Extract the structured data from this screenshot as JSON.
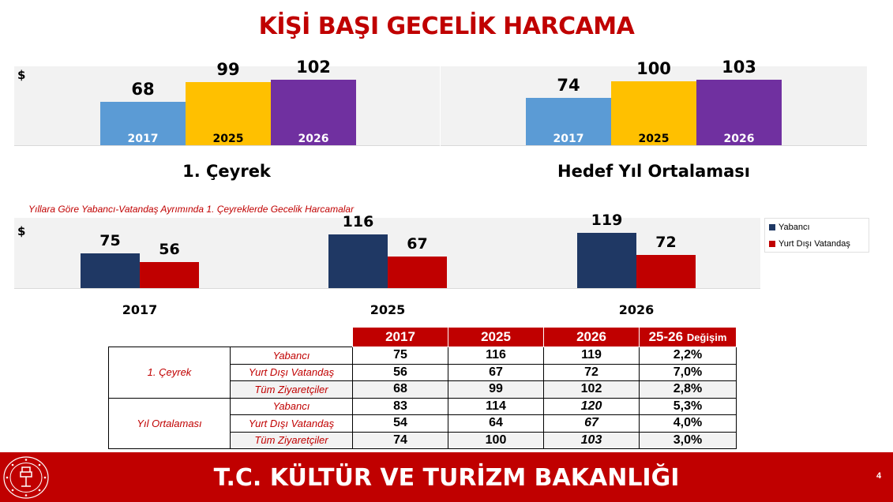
{
  "title": "KİŞİ BAŞI GECELİK HARCAMA",
  "currency": "$",
  "colors": {
    "c2017": "#5b9bd5",
    "c2025": "#ffc000",
    "c2026": "#7030a0",
    "foreign": "#1f3864",
    "citizen": "#c00000",
    "accent": "#c00000"
  },
  "chart_data": [
    {
      "type": "bar",
      "title": "1. Çeyrek",
      "ylabel": "$",
      "categories": [
        "2017",
        "2025",
        "2026"
      ],
      "values": [
        68,
        99,
        102
      ]
    },
    {
      "type": "bar",
      "title": "Hedef Yıl Ortalaması",
      "ylabel": "$",
      "categories": [
        "2017",
        "2025",
        "2026"
      ],
      "values": [
        74,
        100,
        103
      ]
    },
    {
      "type": "bar",
      "title": "Yıllara Göre Yabancı-Vatandaş Ayrımında 1. Çeyreklerde Gecelik Harcamalar",
      "ylabel": "$",
      "categories": [
        "2017",
        "2025",
        "2026"
      ],
      "legend": "right",
      "series": [
        {
          "name": "Yabancı",
          "values": [
            75,
            116,
            119
          ]
        },
        {
          "name": "Yurt Dışı Vatandaş",
          "values": [
            56,
            67,
            72
          ]
        }
      ]
    }
  ],
  "table": {
    "headers": [
      "2017",
      "2025",
      "2026",
      "25-26"
    ],
    "header_suffix": "Değişim",
    "groups": [
      {
        "label": "1. Çeyrek",
        "rows": [
          {
            "label": "Yabancı",
            "values": [
              "75",
              "116",
              "119",
              "2,2%"
            ]
          },
          {
            "label": "Yurt Dışı Vatandaş",
            "values": [
              "56",
              "67",
              "72",
              "7,0%"
            ]
          },
          {
            "label": "Tüm Ziyaretçiler",
            "values": [
              "68",
              "99",
              "102",
              "2,8%"
            ]
          }
        ]
      },
      {
        "label": "Yıl Ortalaması",
        "rows": [
          {
            "label": "Yabancı",
            "values": [
              "83",
              "114",
              "120",
              "5,3%"
            ]
          },
          {
            "label": "Yurt Dışı Vatandaş",
            "values": [
              "54",
              "64",
              "67",
              "4,0%"
            ]
          },
          {
            "label": "Tüm Ziyaretçiler",
            "values": [
              "74",
              "100",
              "103",
              "3,0%"
            ]
          }
        ]
      }
    ]
  },
  "footer": {
    "title": "T.C. KÜLTÜR VE TURİZM BAKANLIĞI",
    "page": "4",
    "logo_icon": "ministry-emblem-icon"
  }
}
